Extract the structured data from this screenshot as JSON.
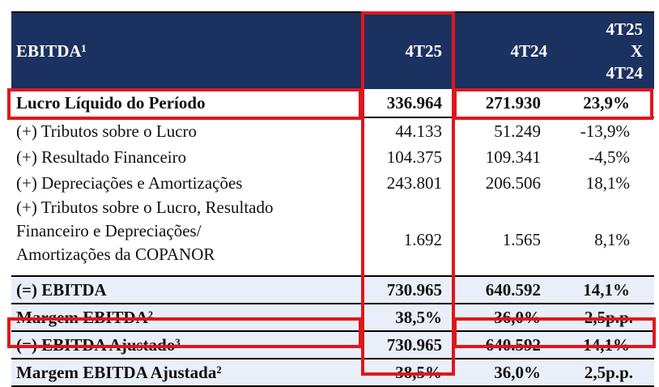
{
  "header": {
    "title": "EBITDA¹",
    "col1": "4T25",
    "col2": "4T24",
    "col3_line1": "4T25",
    "col3_line2": "X",
    "col3_line3": "4T24"
  },
  "rows": [
    {
      "label": "Lucro Líquido do Período",
      "v1": "336.964",
      "v2": "271.930",
      "v3": "23,9%"
    },
    {
      "label": "(+) Tributos sobre o Lucro",
      "v1": "44.133",
      "v2": "51.249",
      "v3": "-13,9%"
    },
    {
      "label": "(+) Resultado Financeiro",
      "v1": "104.375",
      "v2": "109.341",
      "v3": "-4,5%"
    },
    {
      "label": "(+) Depreciações e Amortizações",
      "v1": "243.801",
      "v2": "206.506",
      "v3": "18,1%"
    },
    {
      "label_line1": "(+) Tributos sobre o Lucro, Resultado",
      "label_line2": "Financeiro e Depreciações/",
      "label_line3": "Amortizações da COPANOR",
      "v1": "1.692",
      "v2": "1.565",
      "v3": "8,1%"
    },
    {
      "label": "(=) EBITDA",
      "v1": "730.965",
      "v2": "640.592",
      "v3": "14,1%"
    },
    {
      "label": "Margem EBITDA²",
      "v1": "38,5%",
      "v2": "36,0%",
      "v3": "2,5p.p."
    },
    {
      "label": "(=) EBITDA Ajustado³",
      "v1": "730.965",
      "v2": "640.592",
      "v3": "14,1%"
    },
    {
      "label": "Margem EBITDA Ajustada²",
      "v1": "38,5%",
      "v2": "36,0%",
      "v3": "2,5p.p."
    }
  ],
  "colors": {
    "header_bg": "#1b3160",
    "highlight": "#e0161c",
    "shade": "#e9eff8"
  }
}
